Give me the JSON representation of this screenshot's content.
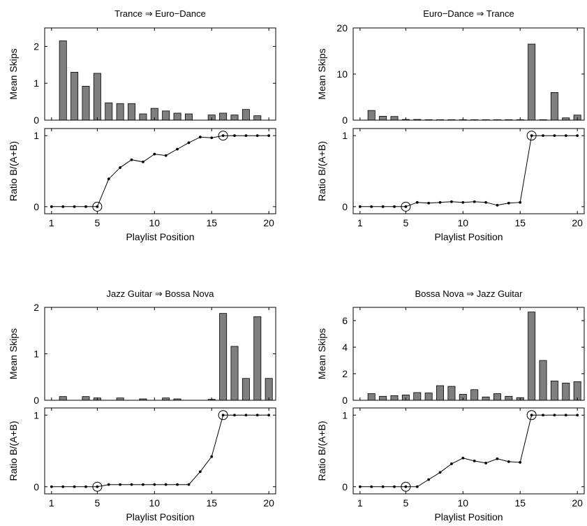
{
  "colors": {
    "bar_fill": "#7f7f7f",
    "line": "#000000",
    "background": "#ffffff"
  },
  "x_ticks": [
    1,
    5,
    10,
    15,
    20
  ],
  "chart_data": [
    {
      "title": "Trance ⇒ Euro−Dance",
      "type": "bar",
      "xlabel": "",
      "ylabel": "Mean Skips",
      "x": [
        1,
        2,
        3,
        4,
        5,
        6,
        7,
        8,
        9,
        10,
        11,
        12,
        13,
        14,
        15,
        16,
        17,
        18,
        19,
        20
      ],
      "values": [
        0,
        2.15,
        1.3,
        0.92,
        1.27,
        0.47,
        0.45,
        0.45,
        0.17,
        0.32,
        0.25,
        0.19,
        0.17,
        0,
        0.14,
        0.19,
        0.14,
        0.29,
        0.12,
        0
      ],
      "ylim": [
        0,
        2.5
      ],
      "yticks": [
        0,
        1,
        2
      ],
      "grid": false,
      "ratio": {
        "type": "line",
        "ylabel": "Ratio B/(A+B)",
        "xlabel": "Playlist Position",
        "x": [
          1,
          2,
          3,
          4,
          5,
          6,
          7,
          8,
          9,
          10,
          11,
          12,
          13,
          14,
          15,
          16,
          17,
          18,
          19,
          20
        ],
        "values": [
          0,
          0,
          0,
          0,
          0,
          0.39,
          0.55,
          0.66,
          0.63,
          0.74,
          0.72,
          0.81,
          0.9,
          0.98,
          0.97,
          1,
          1,
          1,
          1,
          1
        ],
        "ylim": [
          -0.1,
          1.1
        ],
        "yticks": [
          0,
          1
        ],
        "circled_x": [
          5,
          16
        ]
      }
    },
    {
      "title": "Euro−Dance ⇒ Trance",
      "type": "bar",
      "xlabel": "",
      "ylabel": "Mean Skips",
      "x": [
        1,
        2,
        3,
        4,
        5,
        6,
        7,
        8,
        9,
        10,
        11,
        12,
        13,
        14,
        15,
        16,
        17,
        18,
        19,
        20
      ],
      "values": [
        0,
        2.1,
        0.85,
        0.8,
        0.15,
        0.15,
        0.1,
        0.1,
        0.1,
        0.1,
        0.1,
        0.1,
        0.1,
        0.1,
        0.1,
        16.5,
        0.1,
        6.0,
        0.5,
        1.1
      ],
      "ylim": [
        0,
        20
      ],
      "yticks": [
        0,
        10,
        20
      ],
      "grid": false,
      "ratio": {
        "type": "line",
        "ylabel": "Ratio B/(A+B)",
        "xlabel": "Playlist Position",
        "x": [
          1,
          2,
          3,
          4,
          5,
          6,
          7,
          8,
          9,
          10,
          11,
          12,
          13,
          14,
          15,
          16,
          17,
          18,
          19,
          20
        ],
        "values": [
          0,
          0,
          0,
          0,
          0,
          0.06,
          0.05,
          0.06,
          0.07,
          0.06,
          0.07,
          0.06,
          0.02,
          0.05,
          0.06,
          1,
          1,
          1,
          1,
          1
        ],
        "ylim": [
          -0.1,
          1.1
        ],
        "yticks": [
          0,
          1
        ],
        "circled_x": [
          5,
          16
        ]
      }
    },
    {
      "title": "Jazz Guitar ⇒ Bossa Nova",
      "type": "bar",
      "xlabel": "",
      "ylabel": "Mean Skips",
      "x": [
        1,
        2,
        3,
        4,
        5,
        6,
        7,
        8,
        9,
        10,
        11,
        12,
        13,
        14,
        15,
        16,
        17,
        18,
        19,
        20
      ],
      "values": [
        0,
        0.08,
        0,
        0.08,
        0.05,
        0,
        0.05,
        0,
        0.03,
        0,
        0.05,
        0.03,
        0,
        0,
        0.02,
        1.87,
        1.16,
        0.47,
        1.8,
        0.47
      ],
      "ylim": [
        0,
        2
      ],
      "yticks": [
        0,
        1,
        2
      ],
      "grid": false,
      "ratio": {
        "type": "line",
        "ylabel": "Ratio B/(A+B)",
        "xlabel": "Playlist Position",
        "x": [
          1,
          2,
          3,
          4,
          5,
          6,
          7,
          8,
          9,
          10,
          11,
          12,
          13,
          14,
          15,
          16,
          17,
          18,
          19,
          20
        ],
        "values": [
          0,
          0,
          0,
          0,
          0,
          0.03,
          0.03,
          0.03,
          0.03,
          0.03,
          0.03,
          0.03,
          0.03,
          0.21,
          0.42,
          1,
          1,
          1,
          1,
          1
        ],
        "ylim": [
          -0.1,
          1.1
        ],
        "yticks": [
          0,
          1
        ],
        "circled_x": [
          5,
          16
        ]
      }
    },
    {
      "title": "Bossa Nova ⇒ Jazz Guitar",
      "type": "bar",
      "xlabel": "",
      "ylabel": "Mean Skips",
      "x": [
        1,
        2,
        3,
        4,
        5,
        6,
        7,
        8,
        9,
        10,
        11,
        12,
        13,
        14,
        15,
        16,
        17,
        18,
        19,
        20
      ],
      "values": [
        0,
        0.5,
        0.3,
        0.35,
        0.4,
        0.58,
        0.55,
        1.1,
        1.05,
        0.45,
        0.8,
        0.25,
        0.5,
        0.3,
        0.2,
        6.65,
        3.0,
        1.45,
        1.3,
        1.4
      ],
      "ylim": [
        0,
        7
      ],
      "yticks": [
        0,
        2,
        4,
        6
      ],
      "grid": false,
      "ratio": {
        "type": "line",
        "ylabel": "Ratio B/(A+B)",
        "xlabel": "Playlist Position",
        "x": [
          1,
          2,
          3,
          4,
          5,
          6,
          7,
          8,
          9,
          10,
          11,
          12,
          13,
          14,
          15,
          16,
          17,
          18,
          19,
          20
        ],
        "values": [
          0,
          0,
          0,
          0,
          0,
          0,
          0.1,
          0.2,
          0.32,
          0.4,
          0.36,
          0.33,
          0.39,
          0.35,
          0.34,
          1,
          1,
          1,
          1,
          1
        ],
        "ylim": [
          -0.1,
          1.1
        ],
        "yticks": [
          0,
          1
        ],
        "circled_x": [
          5,
          16
        ]
      }
    }
  ]
}
